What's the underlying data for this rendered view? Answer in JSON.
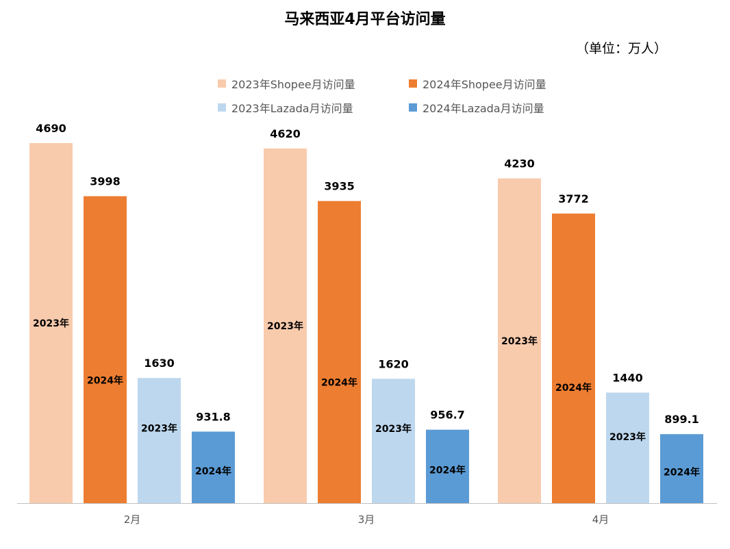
{
  "chart_data": {
    "type": "bar",
    "title": "马来西亚4月平台访问量",
    "unit_note": "（单位：万人）",
    "categories": [
      "2月",
      "3月",
      "4月"
    ],
    "ylim": [
      0,
      5000
    ],
    "legend_position": "top",
    "grid": false,
    "series": [
      {
        "name": "2023年Shopee月访问量",
        "inner_label": "2023年",
        "color": "#F8CBAD",
        "values": [
          4690,
          4620,
          4230
        ]
      },
      {
        "name": "2024年Shopee月访问量",
        "inner_label": "2024年",
        "color": "#ED7D31",
        "values": [
          3998,
          3935,
          3772
        ]
      },
      {
        "name": "2023年Lazada月访问量",
        "inner_label": "2023年",
        "color": "#BDD7EE",
        "values": [
          1630,
          1620,
          1440
        ]
      },
      {
        "name": "2024年Lazada月访问量",
        "inner_label": "2024年",
        "color": "#5B9BD5",
        "values": [
          931.8,
          956.7,
          899.1
        ]
      }
    ]
  }
}
